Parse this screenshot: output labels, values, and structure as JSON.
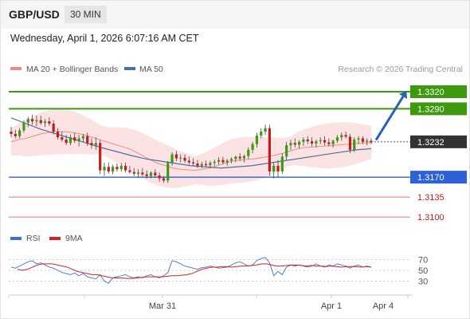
{
  "header": {
    "pair": "GBP/USD",
    "timeframe": "30 MIN"
  },
  "datetime": "Wednesday, April 1, 2026 6:07:16 AM CET",
  "legend": {
    "ma20_bb": "MA 20 + Bollinger Bands",
    "ma50": "MA 50",
    "copyright": "Research © 2026 Trading Central"
  },
  "rsi_legend": {
    "rsi": "RSI",
    "ma9": "9MA"
  },
  "colors": {
    "resistance": "#3d9a0f",
    "support": "#2d62d6",
    "stop": "#f07070",
    "price": "#333333",
    "bollinger": "#fadada",
    "ma20": "#f08a8a",
    "ma50": "#506ca0",
    "rsi": "#3f6fd8",
    "rsi_ma": "#d92020",
    "up": "#3d9a0f",
    "down": "#c21c1c"
  },
  "chart_data": {
    "type": "candlestick",
    "ylim": [
      1.3082,
      1.3348
    ],
    "x_ticks": [
      "Mar 31",
      "Apr 1",
      "Apr 4"
    ],
    "levels": [
      {
        "label": "1.3320",
        "value": 1.332,
        "kind": "resistance"
      },
      {
        "label": "1.3290",
        "value": 1.329,
        "kind": "resistance"
      },
      {
        "label": "1.3232",
        "value": 1.3232,
        "kind": "price"
      },
      {
        "label": "1.3170",
        "value": 1.317,
        "kind": "pivot"
      },
      {
        "label": "1.3135",
        "value": 1.3135,
        "kind": "support"
      },
      {
        "label": "1.3100",
        "value": 1.31,
        "kind": "support"
      }
    ],
    "candles": [
      [
        1.325,
        1.3258,
        1.324,
        1.3246
      ],
      [
        1.3246,
        1.3253,
        1.3238,
        1.3242
      ],
      [
        1.3242,
        1.3256,
        1.3238,
        1.3252
      ],
      [
        1.3252,
        1.327,
        1.3248,
        1.3266
      ],
      [
        1.3266,
        1.3276,
        1.3258,
        1.3272
      ],
      [
        1.3272,
        1.328,
        1.3262,
        1.3268
      ],
      [
        1.3268,
        1.3278,
        1.326,
        1.327
      ],
      [
        1.327,
        1.3278,
        1.3262,
        1.3265
      ],
      [
        1.3265,
        1.3272,
        1.3258,
        1.3268
      ],
      [
        1.3268,
        1.3275,
        1.326,
        1.3264
      ],
      [
        1.3264,
        1.327,
        1.3245,
        1.325
      ],
      [
        1.325,
        1.3256,
        1.3236,
        1.324
      ],
      [
        1.324,
        1.325,
        1.3232,
        1.3236
      ],
      [
        1.3236,
        1.3244,
        1.3226,
        1.323
      ],
      [
        1.323,
        1.3245,
        1.3226,
        1.324
      ],
      [
        1.324,
        1.3248,
        1.323,
        1.3234
      ],
      [
        1.3234,
        1.3244,
        1.3224,
        1.3238
      ],
      [
        1.3238,
        1.3246,
        1.3232,
        1.3242
      ],
      [
        1.3242,
        1.3248,
        1.3225,
        1.323
      ],
      [
        1.323,
        1.3238,
        1.322,
        1.3226
      ],
      [
        1.3226,
        1.324,
        1.3218,
        1.323
      ],
      [
        1.323,
        1.3235,
        1.3175,
        1.3182
      ],
      [
        1.3182,
        1.3196,
        1.3172,
        1.3188
      ],
      [
        1.3188,
        1.3196,
        1.3176,
        1.318
      ],
      [
        1.318,
        1.3192,
        1.3175,
        1.3188
      ],
      [
        1.3188,
        1.3194,
        1.318,
        1.3184
      ],
      [
        1.3184,
        1.3195,
        1.318,
        1.319
      ],
      [
        1.319,
        1.3196,
        1.3178,
        1.3182
      ],
      [
        1.3182,
        1.319,
        1.3176,
        1.3179
      ],
      [
        1.3179,
        1.3186,
        1.3172,
        1.3176
      ],
      [
        1.3176,
        1.3184,
        1.317,
        1.3178
      ],
      [
        1.3178,
        1.3186,
        1.3172,
        1.3175
      ],
      [
        1.3175,
        1.3182,
        1.3168,
        1.3172
      ],
      [
        1.3172,
        1.318,
        1.3168,
        1.3178
      ],
      [
        1.3178,
        1.3184,
        1.317,
        1.3173
      ],
      [
        1.3173,
        1.3178,
        1.3162,
        1.3168
      ],
      [
        1.3168,
        1.3172,
        1.316,
        1.3164
      ],
      [
        1.3164,
        1.3198,
        1.316,
        1.3195
      ],
      [
        1.3195,
        1.3214,
        1.319,
        1.321
      ],
      [
        1.321,
        1.3216,
        1.3198,
        1.3203
      ],
      [
        1.3203,
        1.321,
        1.3196,
        1.3204
      ],
      [
        1.3204,
        1.321,
        1.3195,
        1.3199
      ],
      [
        1.3199,
        1.3206,
        1.3192,
        1.3196
      ],
      [
        1.3196,
        1.3203,
        1.319,
        1.3194
      ],
      [
        1.3194,
        1.32,
        1.3186,
        1.319
      ],
      [
        1.319,
        1.3197,
        1.3186,
        1.3193
      ],
      [
        1.3193,
        1.3199,
        1.3188,
        1.3191
      ],
      [
        1.3191,
        1.3198,
        1.3186,
        1.3195
      ],
      [
        1.3195,
        1.3201,
        1.319,
        1.3197
      ],
      [
        1.3197,
        1.3205,
        1.3192,
        1.32
      ],
      [
        1.32,
        1.3206,
        1.3193,
        1.3196
      ],
      [
        1.3196,
        1.3202,
        1.319,
        1.3199
      ],
      [
        1.3199,
        1.3205,
        1.3194,
        1.3202
      ],
      [
        1.3202,
        1.3208,
        1.3196,
        1.3206
      ],
      [
        1.3206,
        1.3212,
        1.3198,
        1.3203
      ],
      [
        1.3203,
        1.321,
        1.3196,
        1.3207
      ],
      [
        1.3207,
        1.3222,
        1.3202,
        1.3218
      ],
      [
        1.3218,
        1.3232,
        1.3212,
        1.3228
      ],
      [
        1.3228,
        1.3248,
        1.3222,
        1.3243
      ],
      [
        1.3243,
        1.3256,
        1.3238,
        1.325
      ],
      [
        1.325,
        1.3262,
        1.3244,
        1.3256
      ],
      [
        1.3256,
        1.3262,
        1.3172,
        1.318
      ],
      [
        1.318,
        1.3196,
        1.3168,
        1.319
      ],
      [
        1.319,
        1.32,
        1.317,
        1.318
      ],
      [
        1.318,
        1.3212,
        1.3176,
        1.3206
      ],
      [
        1.3206,
        1.3232,
        1.32,
        1.3226
      ],
      [
        1.3226,
        1.3236,
        1.3218,
        1.323
      ],
      [
        1.323,
        1.3238,
        1.3222,
        1.3227
      ],
      [
        1.3227,
        1.3235,
        1.322,
        1.3232
      ],
      [
        1.3232,
        1.324,
        1.3225,
        1.3236
      ],
      [
        1.3236,
        1.3242,
        1.3228,
        1.3233
      ],
      [
        1.3233,
        1.324,
        1.3224,
        1.3229
      ],
      [
        1.3229,
        1.3236,
        1.3222,
        1.3233
      ],
      [
        1.3233,
        1.324,
        1.3228,
        1.3235
      ],
      [
        1.3235,
        1.3242,
        1.3226,
        1.3231
      ],
      [
        1.3231,
        1.3238,
        1.3224,
        1.3228
      ],
      [
        1.3228,
        1.3236,
        1.3222,
        1.3234
      ],
      [
        1.3234,
        1.3244,
        1.323,
        1.324
      ],
      [
        1.324,
        1.3248,
        1.3234,
        1.3244
      ],
      [
        1.3244,
        1.325,
        1.3238,
        1.3241
      ],
      [
        1.3241,
        1.3246,
        1.3212,
        1.3218
      ],
      [
        1.3218,
        1.324,
        1.3214,
        1.3236
      ],
      [
        1.3236,
        1.3242,
        1.3228,
        1.3238
      ],
      [
        1.3238,
        1.3242,
        1.3228,
        1.3232
      ],
      [
        1.3232,
        1.3238,
        1.3226,
        1.3234
      ],
      [
        1.3234,
        1.3238,
        1.3228,
        1.3231
      ]
    ],
    "ma20": [
      1.3232,
      1.3236,
      1.3238,
      1.3242,
      1.3246,
      1.3248,
      1.325,
      1.325,
      1.3249,
      1.3247,
      1.3244,
      1.324,
      1.3236,
      1.3232,
      1.3228,
      1.3224,
      1.322,
      1.3214,
      1.3207,
      1.32,
      1.3194,
      1.319,
      1.3186,
      1.3184,
      1.3183,
      1.3182,
      1.3184,
      1.3186,
      1.319,
      1.3194,
      1.3198,
      1.32,
      1.3201,
      1.3202,
      1.3204,
      1.3206,
      1.3209,
      1.3212,
      1.3216,
      1.322,
      1.3222,
      1.3223,
      1.3224,
      1.3225,
      1.3226,
      1.3227,
      1.3228,
      1.3229,
      1.323,
      1.3231
    ],
    "ma50": [
      1.3274,
      1.3264,
      1.3254,
      1.3246,
      1.3238,
      1.323,
      1.3222,
      1.3215,
      1.3208,
      1.3202,
      1.3198,
      1.3194,
      1.319,
      1.3188,
      1.3186,
      1.3188,
      1.319,
      1.3194,
      1.3198,
      1.3202,
      1.3206,
      1.321,
      1.3214,
      1.3218,
      1.322
    ],
    "rsi": [
      56,
      54,
      58,
      62,
      66,
      68,
      62,
      64,
      60,
      56,
      54,
      50,
      46,
      44,
      42,
      45,
      40,
      44,
      38,
      36,
      34,
      42,
      30,
      26,
      36,
      38,
      40,
      42,
      38,
      36,
      38,
      36,
      40,
      42,
      38,
      36,
      40,
      46,
      68,
      66,
      62,
      58,
      56,
      54,
      52,
      55,
      56,
      58,
      56,
      54,
      55,
      56,
      60,
      64,
      66,
      62,
      58,
      60,
      68,
      72,
      74,
      64,
      40,
      48,
      42,
      56,
      60,
      58,
      60,
      58,
      56,
      58,
      62,
      58,
      56,
      60,
      58,
      62,
      60,
      58,
      54,
      58,
      60,
      56,
      58,
      56
    ],
    "rsi_ma": [
      52,
      50,
      52,
      56,
      60,
      62,
      62,
      62,
      60,
      58,
      56,
      52,
      48,
      46,
      44,
      42,
      42,
      40,
      38,
      36,
      36,
      36,
      35,
      35,
      36,
      37,
      38,
      38,
      38,
      38,
      39,
      40,
      40,
      41,
      42,
      44,
      48,
      52,
      54,
      56,
      56,
      57,
      57,
      56,
      57,
      58,
      58,
      59,
      60,
      62,
      62,
      60,
      58,
      58,
      59,
      60,
      60,
      59,
      58,
      59,
      58,
      58,
      57,
      58,
      57,
      56,
      57,
      57,
      57,
      56,
      57,
      56
    ],
    "rsi_ticks": [
      70,
      50,
      30
    ]
  }
}
